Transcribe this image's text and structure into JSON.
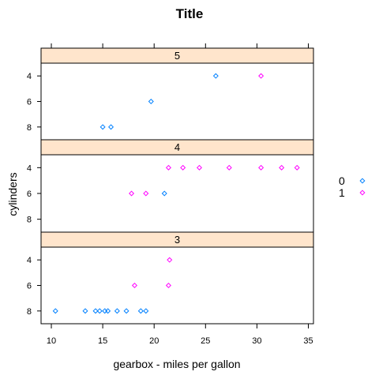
{
  "chart_data": {
    "type": "scatter",
    "title": "Title",
    "xlabel": "gearbox - miles per gallon",
    "ylabel": "cylinders",
    "xlim": [
      9,
      35.5
    ],
    "x_ticks": [
      10,
      15,
      20,
      25,
      30,
      35
    ],
    "y_ticks": [
      4,
      6,
      8
    ],
    "y_lim": [
      9,
      3
    ],
    "panels": [
      "5",
      "4",
      "3"
    ],
    "legend": {
      "placement": "right",
      "entries": [
        {
          "name": "0",
          "color": "#0080ff"
        },
        {
          "name": "1",
          "color": "#ff00ff"
        }
      ]
    },
    "series": [
      {
        "name": "0",
        "color": "#0080ff",
        "points": [
          {
            "panel": "5",
            "x": 26.0,
            "y": 4
          },
          {
            "panel": "5",
            "x": 19.7,
            "y": 6
          },
          {
            "panel": "5",
            "x": 15.0,
            "y": 8
          },
          {
            "panel": "5",
            "x": 15.8,
            "y": 8
          },
          {
            "panel": "4",
            "x": 21.0,
            "y": 6
          },
          {
            "panel": "3",
            "x": 10.4,
            "y": 8
          },
          {
            "panel": "3",
            "x": 13.3,
            "y": 8
          },
          {
            "panel": "3",
            "x": 14.3,
            "y": 8
          },
          {
            "panel": "3",
            "x": 14.7,
            "y": 8
          },
          {
            "panel": "3",
            "x": 15.2,
            "y": 8
          },
          {
            "panel": "3",
            "x": 15.5,
            "y": 8
          },
          {
            "panel": "3",
            "x": 16.4,
            "y": 8
          },
          {
            "panel": "3",
            "x": 17.3,
            "y": 8
          },
          {
            "panel": "3",
            "x": 18.7,
            "y": 8
          },
          {
            "panel": "3",
            "x": 19.2,
            "y": 8
          }
        ]
      },
      {
        "name": "1",
        "color": "#ff00ff",
        "points": [
          {
            "panel": "5",
            "x": 30.4,
            "y": 4
          },
          {
            "panel": "4",
            "x": 21.4,
            "y": 4
          },
          {
            "panel": "4",
            "x": 22.8,
            "y": 4
          },
          {
            "panel": "4",
            "x": 24.4,
            "y": 4
          },
          {
            "panel": "4",
            "x": 27.3,
            "y": 4
          },
          {
            "panel": "4",
            "x": 30.4,
            "y": 4
          },
          {
            "panel": "4",
            "x": 32.4,
            "y": 4
          },
          {
            "panel": "4",
            "x": 33.9,
            "y": 4
          },
          {
            "panel": "4",
            "x": 17.8,
            "y": 6
          },
          {
            "panel": "4",
            "x": 19.2,
            "y": 6
          },
          {
            "panel": "3",
            "x": 21.5,
            "y": 4
          },
          {
            "panel": "3",
            "x": 18.1,
            "y": 6
          },
          {
            "panel": "3",
            "x": 21.4,
            "y": 6
          }
        ]
      }
    ]
  },
  "strip_color": "#ffe5cc",
  "frame_color": "#000000"
}
